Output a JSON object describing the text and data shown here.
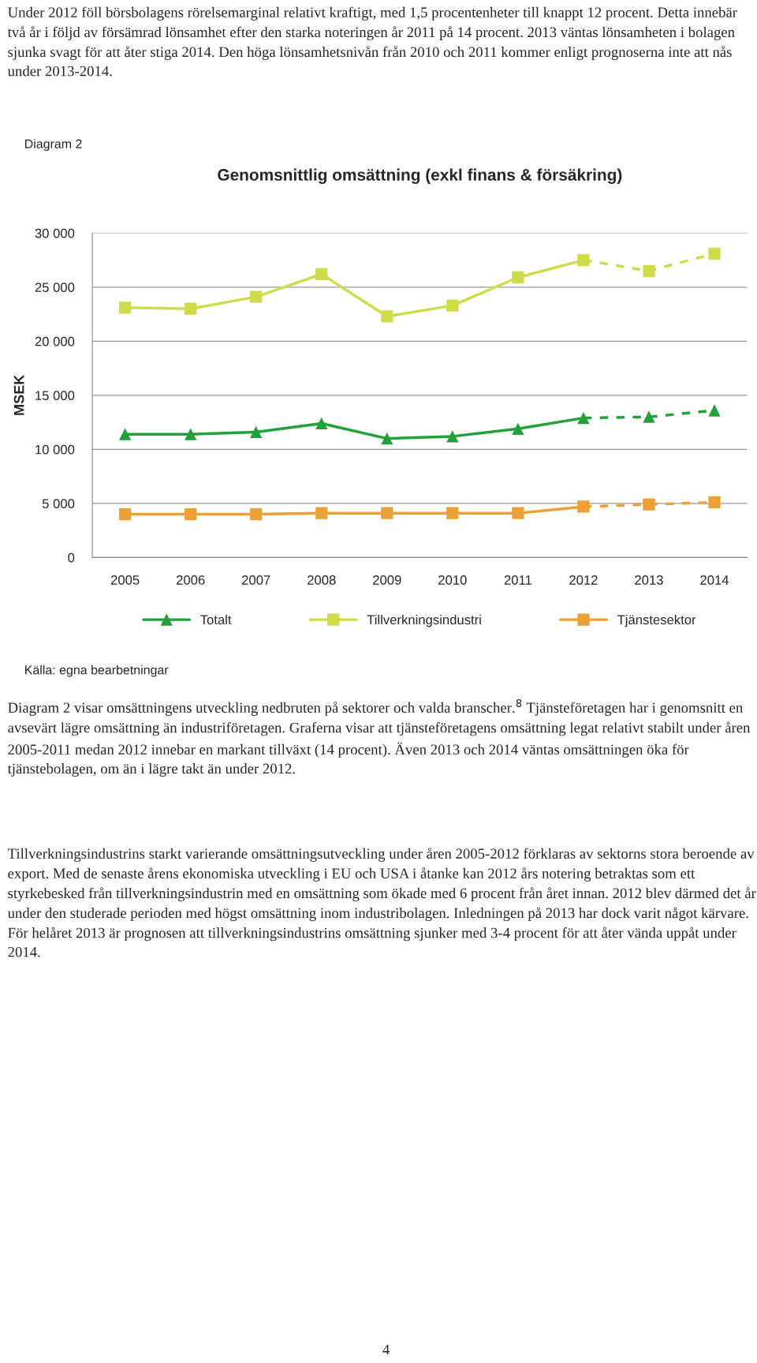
{
  "chart_data": {
    "type": "line",
    "title": "Genomsnittlig omsättning (exkl finans & försäkring)",
    "ylabel": "MSEK",
    "categories": [
      "2005",
      "2006",
      "2007",
      "2008",
      "2009",
      "2010",
      "2011",
      "2012",
      "2013",
      "2014"
    ],
    "series": [
      {
        "name": "Totalt",
        "color": "#22a03a",
        "marker": "triangle",
        "line_style": "solid",
        "values": [
          11400,
          11400,
          11600,
          12400,
          11000,
          11200,
          11900,
          12900,
          null,
          null
        ]
      },
      {
        "color": "#22a03a",
        "marker": "triangle",
        "line_style": "dashed",
        "values": [
          null,
          null,
          null,
          null,
          null,
          null,
          null,
          12900,
          13000,
          13600
        ]
      },
      {
        "name": "Tillverkningsindustri",
        "color": "#cfdc4a",
        "marker": "square",
        "line_style": "solid",
        "values": [
          23100,
          23000,
          24100,
          26200,
          22300,
          23300,
          25900,
          27500,
          null,
          null
        ]
      },
      {
        "color": "#cfdc4a",
        "marker": "square",
        "line_style": "dashed",
        "values": [
          null,
          null,
          null,
          null,
          null,
          null,
          null,
          27500,
          26500,
          28100
        ]
      },
      {
        "name": "Tjänstesektor",
        "color": "#eba135",
        "marker": "square",
        "line_style": "solid",
        "values": [
          4000,
          4000,
          4000,
          4100,
          4100,
          4100,
          4100,
          4700,
          null,
          null
        ]
      },
      {
        "color": "#eba135",
        "marker": "square",
        "line_style": "dashed",
        "values": [
          null,
          null,
          null,
          null,
          null,
          null,
          null,
          4700,
          4900,
          5100
        ]
      }
    ],
    "ylim": [
      0,
      30000
    ],
    "yticks": [
      {
        "value": 0,
        "label": "0"
      },
      {
        "value": 5000,
        "label": "5 000"
      },
      {
        "value": 10000,
        "label": "10 000"
      },
      {
        "value": 15000,
        "label": "15 000"
      },
      {
        "value": 20000,
        "label": "20 000"
      },
      {
        "value": 25000,
        "label": "25 000"
      },
      {
        "value": 30000,
        "label": "30 000"
      }
    ],
    "grid": "y",
    "legend": "bottom",
    "annotations": [
      "Under 2012 föll börsbolagens rörelsemarginal relativt kraftigt, med 1,5 procentenheter till knappt 12 procent. Detta innebär två år i följd av försämrad lönsamhet efter den starka noteringen år 2011 på 14 procent. 2013 väntas lönsamheten i bolagen sjunka svagt för att åter stiga 2014. Den höga lönsamhetsnivån från 2010 och 2011 kommer enligt prognoserna inte att nås under 2013-2014.",
      "Diagram 2",
      "Källa: egna bearbetningar",
      "Diagram 2 visar omsättningens utveckling nedbruten på sektorer och valda branscher.$^{8}$ Tjänsteföretagen har i genomsnitt en avsevärt lägre omsättning än industriföretagen. Graferna visar att tjänsteföretagens omsättning legat relativt stabilt under åren 2005-2011 medan 2012 innebar en markant tillväxt (14 procent). Även 2013 och 2014 väntas omsättningen öka för tjänstebolagen, om än i lägre takt än under 2012.",
      "Tillverkningsindustrins starkt varierande omsättningsutveckling under åren 2005-2012 förklaras av sektorns stora beroende av export. Med de senaste årens ekonomiska utveckling i EU och USA i åtanke kan 2012 års notering betraktas som ett styrkebesked från tillverkningsindustrin med en omsättning som ökade med 6 procent från året innan. 2012 blev därmed det år under den studerade perioden med högst omsättning inom industribolagen. Inledningen på 2013 har dock varit något kärvare. För helåret 2013 är prognosen att tillverkningsindustrins omsättning sjunker med 3-4 procent för att åter vända uppåt under 2014.",
      "4"
    ]
  }
}
